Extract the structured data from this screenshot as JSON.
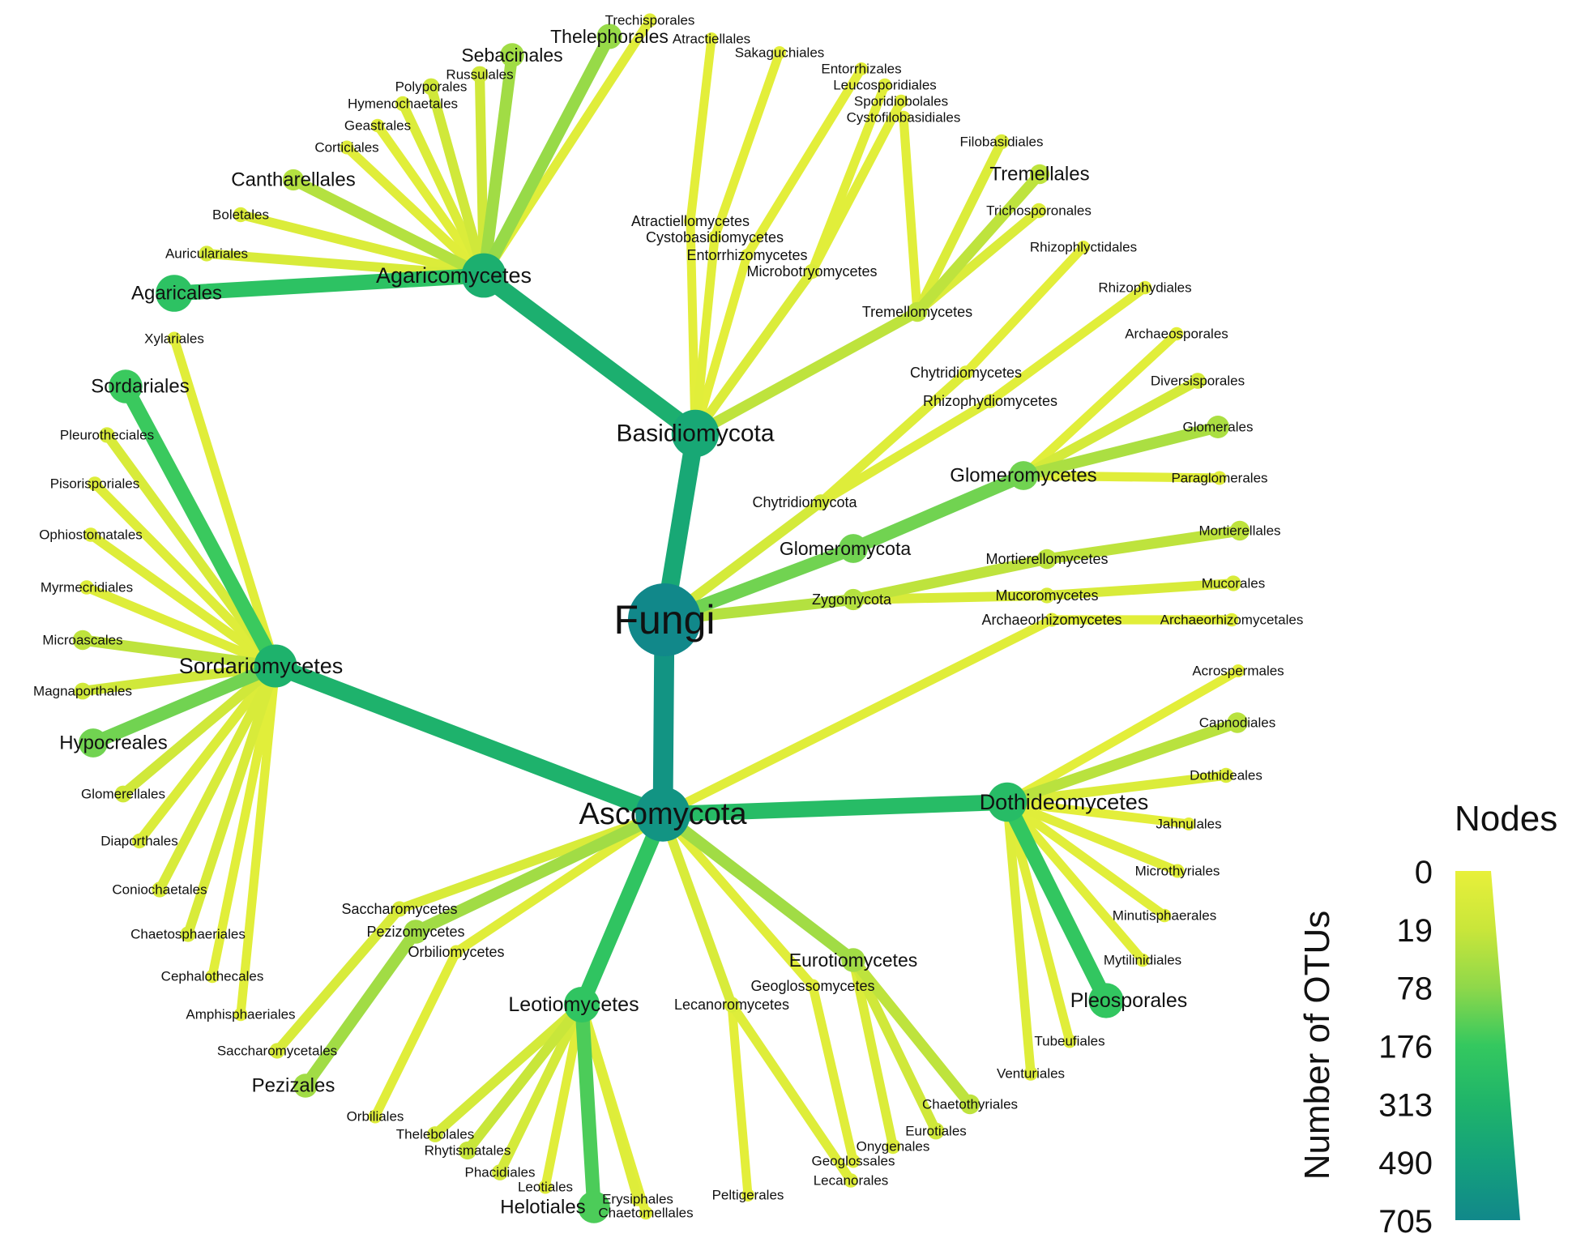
{
  "legend": {
    "title": "Nodes",
    "axis_label": "Number of OTUs",
    "ticks": [
      "0",
      "19",
      "78",
      "176",
      "313",
      "490",
      "705"
    ],
    "colors": [
      "#e8f03a",
      "#c9e63a",
      "#8fd84a",
      "#34c85f",
      "#1fb46a",
      "#14a07c",
      "#11888a"
    ]
  },
  "tree": {
    "root": "Fungi",
    "nodes": [
      {
        "id": "Fungi",
        "label": "Fungi",
        "level": 0,
        "otus": 705
      },
      {
        "id": "Basidiomycota",
        "label": "Basidiomycota",
        "parent": "Fungi",
        "level": 1,
        "otus": 420
      },
      {
        "id": "Ascomycota",
        "label": "Ascomycota",
        "parent": "Fungi",
        "level": 1,
        "otus": 600
      },
      {
        "id": "Glomeromycota",
        "label": "Glomeromycota",
        "parent": "Fungi",
        "level": 1,
        "otus": 110
      },
      {
        "id": "Zygomycota",
        "label": "Zygomycota",
        "parent": "Fungi",
        "level": 1,
        "otus": 40
      },
      {
        "id": "Chytridiomycota",
        "label": "Chytridiomycota",
        "parent": "Fungi",
        "level": 1,
        "otus": 12
      },
      {
        "id": "Agaricomycetes",
        "label": "Agaricomycetes",
        "parent": "Basidiomycota",
        "level": 2,
        "otus": 360
      },
      {
        "id": "Atractiellomycetes",
        "label": "Atractiellomycetes",
        "parent": "Basidiomycota",
        "level": 2,
        "otus": 3
      },
      {
        "id": "Cystobasidiomycetes",
        "label": "Cystobasidiomycetes",
        "parent": "Basidiomycota",
        "level": 2,
        "otus": 4
      },
      {
        "id": "Entorrhizomycetes",
        "label": "Entorrhizomycetes",
        "parent": "Basidiomycota",
        "level": 2,
        "otus": 3
      },
      {
        "id": "Microbotryomycetes",
        "label": "Microbotryomycetes",
        "parent": "Basidiomycota",
        "level": 2,
        "otus": 8
      },
      {
        "id": "Tremellomycetes",
        "label": "Tremellomycetes",
        "parent": "Basidiomycota",
        "level": 2,
        "otus": 30
      },
      {
        "id": "Chytridiomycetes",
        "label": "Chytridiomycetes",
        "parent": "Chytridiomycota",
        "level": 2,
        "otus": 6
      },
      {
        "id": "Rhizophydiomycetes",
        "label": "Rhizophydiomycetes",
        "parent": "Chytridiomycota",
        "level": 2,
        "otus": 6
      },
      {
        "id": "Glomeromycetes",
        "label": "Glomeromycetes",
        "parent": "Glomeromycota",
        "level": 2,
        "otus": 110
      },
      {
        "id": "Mortierellomycetes",
        "label": "Mortierellomycetes",
        "parent": "Zygomycota",
        "level": 2,
        "otus": 30
      },
      {
        "id": "Mucoromycetes",
        "label": "Mucoromycetes",
        "parent": "Zygomycota",
        "level": 2,
        "otus": 10
      },
      {
        "id": "Archaeorhizomycetes",
        "label": "Archaeorhizomycetes",
        "parent": "Ascomycota",
        "level": 2,
        "otus": 5
      },
      {
        "id": "Dothideomycetes",
        "label": "Dothideomycetes",
        "parent": "Ascomycota",
        "level": 2,
        "otus": 260
      },
      {
        "id": "Eurotiomycetes",
        "label": "Eurotiomycetes",
        "parent": "Ascomycota",
        "level": 2,
        "otus": 60
      },
      {
        "id": "Geoglossomycetes",
        "label": "Geoglossomycetes",
        "parent": "Ascomycota",
        "level": 2,
        "otus": 5
      },
      {
        "id": "Lecanoromycetes",
        "label": "Lecanoromycetes",
        "parent": "Ascomycota",
        "level": 2,
        "otus": 10
      },
      {
        "id": "Leotiomycetes",
        "label": "Leotiomycetes",
        "parent": "Ascomycota",
        "level": 2,
        "otus": 200
      },
      {
        "id": "Orbiliomycetes",
        "label": "Orbiliomycetes",
        "parent": "Ascomycota",
        "level": 2,
        "otus": 5
      },
      {
        "id": "Pezizomycetes",
        "label": "Pezizomycetes",
        "parent": "Ascomycota",
        "level": 2,
        "otus": 60
      },
      {
        "id": "Saccharomycetes",
        "label": "Saccharomycetes",
        "parent": "Ascomycota",
        "level": 2,
        "otus": 10
      },
      {
        "id": "Sordariomycetes",
        "label": "Sordariomycetes",
        "parent": "Ascomycota",
        "level": 2,
        "otus": 330
      },
      {
        "id": "Agaricales",
        "label": "Agaricales",
        "parent": "Agaricomycetes",
        "level": 3,
        "otus": 220
      },
      {
        "id": "Auriculariales",
        "label": "Auriculariales",
        "parent": "Agaricomycetes",
        "level": 3,
        "otus": 10
      },
      {
        "id": "Boletales",
        "label": "Boletales",
        "parent": "Agaricomycetes",
        "level": 3,
        "otus": 8
      },
      {
        "id": "Cantharellales",
        "label": "Cantharellales",
        "parent": "Agaricomycetes",
        "level": 3,
        "otus": 40
      },
      {
        "id": "Corticiales",
        "label": "Corticiales",
        "parent": "Agaricomycetes",
        "level": 3,
        "otus": 5
      },
      {
        "id": "Geastrales",
        "label": "Geastrales",
        "parent": "Agaricomycetes",
        "level": 3,
        "otus": 4
      },
      {
        "id": "Hymenochaetales",
        "label": "Hymenochaetales",
        "parent": "Agaricomycetes",
        "level": 3,
        "otus": 8
      },
      {
        "id": "Polyporales",
        "label": "Polyporales",
        "parent": "Agaricomycetes",
        "level": 3,
        "otus": 15
      },
      {
        "id": "Russulales",
        "label": "Russulales",
        "parent": "Agaricomycetes",
        "level": 3,
        "otus": 15
      },
      {
        "id": "Sebacinales",
        "label": "Sebacinales",
        "parent": "Agaricomycetes",
        "level": 3,
        "otus": 60
      },
      {
        "id": "Thelephorales",
        "label": "Thelephorales",
        "parent": "Agaricomycetes",
        "level": 3,
        "otus": 70
      },
      {
        "id": "Trechisporales",
        "label": "Trechisporales",
        "parent": "Agaricomycetes",
        "level": 3,
        "otus": 5
      },
      {
        "id": "Atractiellales",
        "label": "Atractiellales",
        "parent": "Atractiellomycetes",
        "level": 3,
        "otus": 3
      },
      {
        "id": "Sakaguchiales",
        "label": "Sakaguchiales",
        "parent": "Cystobasidiomycetes",
        "level": 3,
        "otus": 3
      },
      {
        "id": "Entorrhizales",
        "label": "Entorrhizales",
        "parent": "Entorrhizomycetes",
        "level": 3,
        "otus": 3
      },
      {
        "id": "Leucosporidiales",
        "label": "Leucosporidiales",
        "parent": "Microbotryomycetes",
        "level": 3,
        "otus": 4
      },
      {
        "id": "Sporidiobolales",
        "label": "Sporidiobolales",
        "parent": "Microbotryomycetes",
        "level": 3,
        "otus": 4
      },
      {
        "id": "Cystofilobasidiales",
        "label": "Cystofilobasidiales",
        "parent": "Tremellomycetes",
        "level": 3,
        "otus": 4
      },
      {
        "id": "Filobasidiales",
        "label": "Filobasidiales",
        "parent": "Tremellomycetes",
        "level": 3,
        "otus": 8
      },
      {
        "id": "Tremellales",
        "label": "Tremellales",
        "parent": "Tremellomycetes",
        "level": 3,
        "otus": 30
      },
      {
        "id": "Trichosporonales",
        "label": "Trichosporonales",
        "parent": "Tremellomycetes",
        "level": 3,
        "otus": 8
      },
      {
        "id": "Rhizophlyctidales",
        "label": "Rhizophlyctidales",
        "parent": "Chytridiomycetes",
        "level": 3,
        "otus": 3
      },
      {
        "id": "Rhizophydiales",
        "label": "Rhizophydiales",
        "parent": "Rhizophydiomycetes",
        "level": 3,
        "otus": 4
      },
      {
        "id": "Archaeosporales",
        "label": "Archaeosporales",
        "parent": "Glomeromycetes",
        "level": 3,
        "otus": 4
      },
      {
        "id": "Diversisporales",
        "label": "Diversisporales",
        "parent": "Glomeromycetes",
        "level": 3,
        "otus": 12
      },
      {
        "id": "Glomerales",
        "label": "Glomerales",
        "parent": "Glomeromycetes",
        "level": 3,
        "otus": 50
      },
      {
        "id": "Paraglomerales",
        "label": "Paraglomerales",
        "parent": "Glomeromycetes",
        "level": 3,
        "otus": 5
      },
      {
        "id": "Mortierellales",
        "label": "Mortierellales",
        "parent": "Mortierellomycetes",
        "level": 3,
        "otus": 30
      },
      {
        "id": "Mucorales",
        "label": "Mucorales",
        "parent": "Mucoromycetes",
        "level": 3,
        "otus": 10
      },
      {
        "id": "Archaeorhizomycetales",
        "label": "Archaeorhizomycetales",
        "parent": "Archaeorhizomycetes",
        "level": 3,
        "otus": 4
      },
      {
        "id": "Acrospermales",
        "label": "Acrospermales",
        "parent": "Dothideomycetes",
        "level": 3,
        "otus": 3
      },
      {
        "id": "Capnodiales",
        "label": "Capnodiales",
        "parent": "Dothideomycetes",
        "level": 3,
        "otus": 35
      },
      {
        "id": "Dothideales",
        "label": "Dothideales",
        "parent": "Dothideomycetes",
        "level": 3,
        "otus": 8
      },
      {
        "id": "Jahnulales",
        "label": "Jahnulales",
        "parent": "Dothideomycetes",
        "level": 3,
        "otus": 3
      },
      {
        "id": "Microthyriales",
        "label": "Microthyriales",
        "parent": "Dothideomycetes",
        "level": 3,
        "otus": 5
      },
      {
        "id": "Minutisphaerales",
        "label": "Minutisphaerales",
        "parent": "Dothideomycetes",
        "level": 3,
        "otus": 4
      },
      {
        "id": "Mytilinidiales",
        "label": "Mytilinidiales",
        "parent": "Dothideomycetes",
        "level": 3,
        "otus": 4
      },
      {
        "id": "Pleosporales",
        "label": "Pleosporales",
        "parent": "Dothideomycetes",
        "level": 3,
        "otus": 190
      },
      {
        "id": "Tubeufiales",
        "label": "Tubeufiales",
        "parent": "Dothideomycetes",
        "level": 3,
        "otus": 5
      },
      {
        "id": "Venturiales",
        "label": "Venturiales",
        "parent": "Dothideomycetes",
        "level": 3,
        "otus": 6
      },
      {
        "id": "Chaetothyriales",
        "label": "Chaetothyriales",
        "parent": "Eurotiomycetes",
        "level": 3,
        "otus": 30
      },
      {
        "id": "Eurotiales",
        "label": "Eurotiales",
        "parent": "Eurotiomycetes",
        "level": 3,
        "otus": 15
      },
      {
        "id": "Onygenales",
        "label": "Onygenales",
        "parent": "Eurotiomycetes",
        "level": 3,
        "otus": 8
      },
      {
        "id": "Geoglossales",
        "label": "Geoglossales",
        "parent": "Geoglossomycetes",
        "level": 3,
        "otus": 5
      },
      {
        "id": "Lecanorales",
        "label": "Lecanorales",
        "parent": "Lecanoromycetes",
        "level": 3,
        "otus": 6
      },
      {
        "id": "Peltigerales",
        "label": "Peltigerales",
        "parent": "Lecanoromycetes",
        "level": 3,
        "otus": 3
      },
      {
        "id": "Chaetomellales",
        "label": "Chaetomellales",
        "parent": "Leotiomycetes",
        "level": 3,
        "otus": 4
      },
      {
        "id": "Erysiphales",
        "label": "Erysiphales",
        "parent": "Leotiomycetes",
        "level": 3,
        "otus": 6
      },
      {
        "id": "Helotiales",
        "label": "Helotiales",
        "parent": "Leotiomycetes",
        "level": 3,
        "otus": 150
      },
      {
        "id": "Leotiales",
        "label": "Leotiales",
        "parent": "Leotiomycetes",
        "level": 3,
        "otus": 5
      },
      {
        "id": "Phacidiales",
        "label": "Phacidiales",
        "parent": "Leotiomycetes",
        "level": 3,
        "otus": 12
      },
      {
        "id": "Rhytismatales",
        "label": "Rhytismatales",
        "parent": "Leotiomycetes",
        "level": 3,
        "otus": 20
      },
      {
        "id": "Thelebolales",
        "label": "Thelebolales",
        "parent": "Leotiomycetes",
        "level": 3,
        "otus": 12
      },
      {
        "id": "Orbiliales",
        "label": "Orbiliales",
        "parent": "Orbiliomycetes",
        "level": 3,
        "otus": 5
      },
      {
        "id": "Pezizales",
        "label": "Pezizales",
        "parent": "Pezizomycetes",
        "level": 3,
        "otus": 60
      },
      {
        "id": "Saccharomycetales",
        "label": "Saccharomycetales",
        "parent": "Saccharomycetes",
        "level": 3,
        "otus": 10
      },
      {
        "id": "Amphisphaeriales",
        "label": "Amphisphaeriales",
        "parent": "Sordariomycetes",
        "level": 3,
        "otus": 4
      },
      {
        "id": "Cephalothecales",
        "label": "Cephalothecales",
        "parent": "Sordariomycetes",
        "level": 3,
        "otus": 4
      },
      {
        "id": "Chaetosphaeriales",
        "label": "Chaetosphaeriales",
        "parent": "Sordariomycetes",
        "level": 3,
        "otus": 10
      },
      {
        "id": "Coniochaetales",
        "label": "Coniochaetales",
        "parent": "Sordariomycetes",
        "level": 3,
        "otus": 10
      },
      {
        "id": "Diaporthales",
        "label": "Diaporthales",
        "parent": "Sordariomycetes",
        "level": 3,
        "otus": 8
      },
      {
        "id": "Glomerellales",
        "label": "Glomerellales",
        "parent": "Sordariomycetes",
        "level": 3,
        "otus": 15
      },
      {
        "id": "Hypocreales",
        "label": "Hypocreales",
        "parent": "Sordariomycetes",
        "level": 3,
        "otus": 110
      },
      {
        "id": "Magnaporthales",
        "label": "Magnaporthales",
        "parent": "Sordariomycetes",
        "level": 3,
        "otus": 15
      },
      {
        "id": "Microascales",
        "label": "Microascales",
        "parent": "Sordariomycetes",
        "level": 3,
        "otus": 30
      },
      {
        "id": "Myrmecridiales",
        "label": "Myrmecridiales",
        "parent": "Sordariomycetes",
        "level": 3,
        "otus": 6
      },
      {
        "id": "Ophiostomatales",
        "label": "Ophiostomatales",
        "parent": "Sordariomycetes",
        "level": 3,
        "otus": 6
      },
      {
        "id": "Pisorisporiales",
        "label": "Pisorisporiales",
        "parent": "Sordariomycetes",
        "level": 3,
        "otus": 6
      },
      {
        "id": "Pleurotheciales",
        "label": "Pleurotheciales",
        "parent": "Sordariomycetes",
        "level": 3,
        "otus": 10
      },
      {
        "id": "Sordariales",
        "label": "Sordariales",
        "parent": "Sordariomycetes",
        "level": 3,
        "otus": 170
      },
      {
        "id": "Xylariales",
        "label": "Xylariales",
        "parent": "Sordariomycetes",
        "level": 3,
        "otus": 5
      }
    ]
  }
}
